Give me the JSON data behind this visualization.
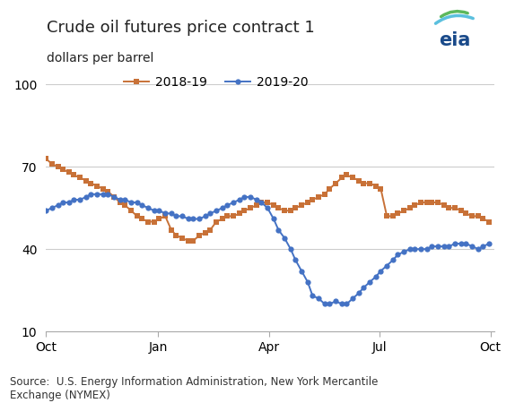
{
  "title": "Crude oil futures price contract 1",
  "ylabel": "dollars per barrel",
  "source_text": "Source:  U.S. Energy Information Administration, New York Mercantile\nExchange (NYMEX)",
  "yticks": [
    10,
    40,
    70,
    100
  ],
  "xtick_labels": [
    "Oct",
    "Jan",
    "Apr",
    "Jul",
    "Oct"
  ],
  "ylim": [
    10,
    100
  ],
  "series_2018": {
    "label": "2018-19",
    "color": "#C87137",
    "marker": "s",
    "x_days": [
      0,
      5,
      10,
      14,
      19,
      23,
      28,
      33,
      37,
      42,
      47,
      51,
      56,
      61,
      65,
      70,
      75,
      79,
      84,
      89,
      93,
      98,
      103,
      107,
      112,
      117,
      121,
      126,
      131,
      135,
      140,
      145,
      149,
      154,
      159,
      163,
      168,
      173,
      177,
      182,
      187,
      191,
      196,
      201,
      205,
      210,
      215,
      219,
      224,
      229,
      233,
      238,
      243,
      247,
      252,
      257,
      261,
      266,
      271,
      275,
      280,
      285,
      289,
      294,
      299,
      303,
      308,
      313,
      317,
      322,
      327,
      331,
      336,
      341,
      345,
      350,
      355,
      359,
      364
    ],
    "values": [
      73,
      71,
      70,
      69,
      68,
      67,
      66,
      65,
      64,
      63,
      62,
      61,
      59,
      57,
      56,
      54,
      52,
      51,
      50,
      50,
      51,
      52,
      47,
      45,
      44,
      43,
      43,
      45,
      46,
      47,
      50,
      51,
      52,
      52,
      53,
      54,
      55,
      56,
      57,
      57,
      56,
      55,
      54,
      54,
      55,
      56,
      57,
      58,
      59,
      60,
      62,
      64,
      66,
      67,
      66,
      65,
      64,
      64,
      63,
      62,
      52,
      52,
      53,
      54,
      55,
      56,
      57,
      57,
      57,
      57,
      56,
      55,
      55,
      54,
      53,
      52,
      52,
      51,
      50
    ]
  },
  "series_2019": {
    "label": "2019-20",
    "color": "#4472C4",
    "marker": "o",
    "x_days": [
      0,
      5,
      10,
      14,
      19,
      23,
      28,
      33,
      37,
      42,
      47,
      51,
      56,
      61,
      65,
      70,
      75,
      79,
      84,
      89,
      93,
      98,
      103,
      107,
      112,
      117,
      121,
      126,
      131,
      135,
      140,
      145,
      149,
      154,
      159,
      163,
      168,
      173,
      177,
      182,
      187,
      191,
      196,
      201,
      205,
      210,
      215,
      219,
      224,
      229,
      233,
      238,
      243,
      247,
      252,
      257,
      261,
      266,
      271,
      275,
      280,
      285,
      289,
      294,
      299,
      303,
      308,
      313,
      317,
      322,
      327,
      331,
      336,
      341,
      345,
      350,
      355,
      359,
      364
    ],
    "values": [
      54,
      55,
      56,
      57,
      57,
      58,
      58,
      59,
      60,
      60,
      60,
      60,
      59,
      58,
      58,
      57,
      57,
      56,
      55,
      54,
      54,
      53,
      53,
      52,
      52,
      51,
      51,
      51,
      52,
      53,
      54,
      55,
      56,
      57,
      58,
      59,
      59,
      58,
      57,
      55,
      51,
      47,
      44,
      40,
      36,
      32,
      28,
      23,
      22,
      20,
      20,
      21,
      20,
      20,
      22,
      24,
      26,
      28,
      30,
      32,
      34,
      36,
      38,
      39,
      40,
      40,
      40,
      40,
      41,
      41,
      41,
      41,
      42,
      42,
      42,
      41,
      40,
      41,
      42
    ]
  },
  "background_color": "#ffffff",
  "grid_color": "#cccccc",
  "title_fontsize": 13,
  "label_fontsize": 10,
  "tick_fontsize": 10,
  "source_fontsize": 8.5
}
